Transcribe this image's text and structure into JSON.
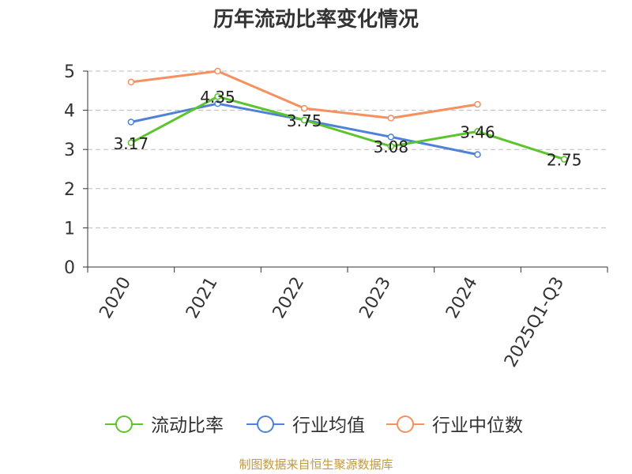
{
  "colors": {
    "axis": "#333333",
    "grid": "#bbbbbb",
    "footer": "#c19a3f"
  },
  "footer": {
    "source": "制图数据来自恒生聚源数据库"
  },
  "chart_data": {
    "type": "line",
    "title": "历年流动比率变化情况",
    "xlabel": "",
    "ylabel": "",
    "categories": [
      "2020",
      "2021",
      "2022",
      "2023",
      "2024",
      "2025Q1-Q3"
    ],
    "ylim": [
      0,
      5
    ],
    "yticks": [
      0,
      1,
      2,
      3,
      4,
      5
    ],
    "grid": true,
    "legend_position": "bottom",
    "series": [
      {
        "name": "流动比率",
        "color": "#5cc42c",
        "values": [
          3.17,
          4.35,
          3.75,
          3.08,
          3.46,
          2.75
        ],
        "labels": [
          "3.17",
          "4.35",
          "3.75",
          "3.08",
          "3.46",
          "2.75"
        ]
      },
      {
        "name": "行业均值",
        "color": "#4f81d9",
        "values": [
          3.7,
          4.17,
          3.75,
          3.32,
          2.87,
          null
        ]
      },
      {
        "name": "行业中位数",
        "color": "#f59060",
        "values": [
          4.72,
          5.0,
          4.05,
          3.8,
          4.15,
          null
        ]
      }
    ]
  }
}
